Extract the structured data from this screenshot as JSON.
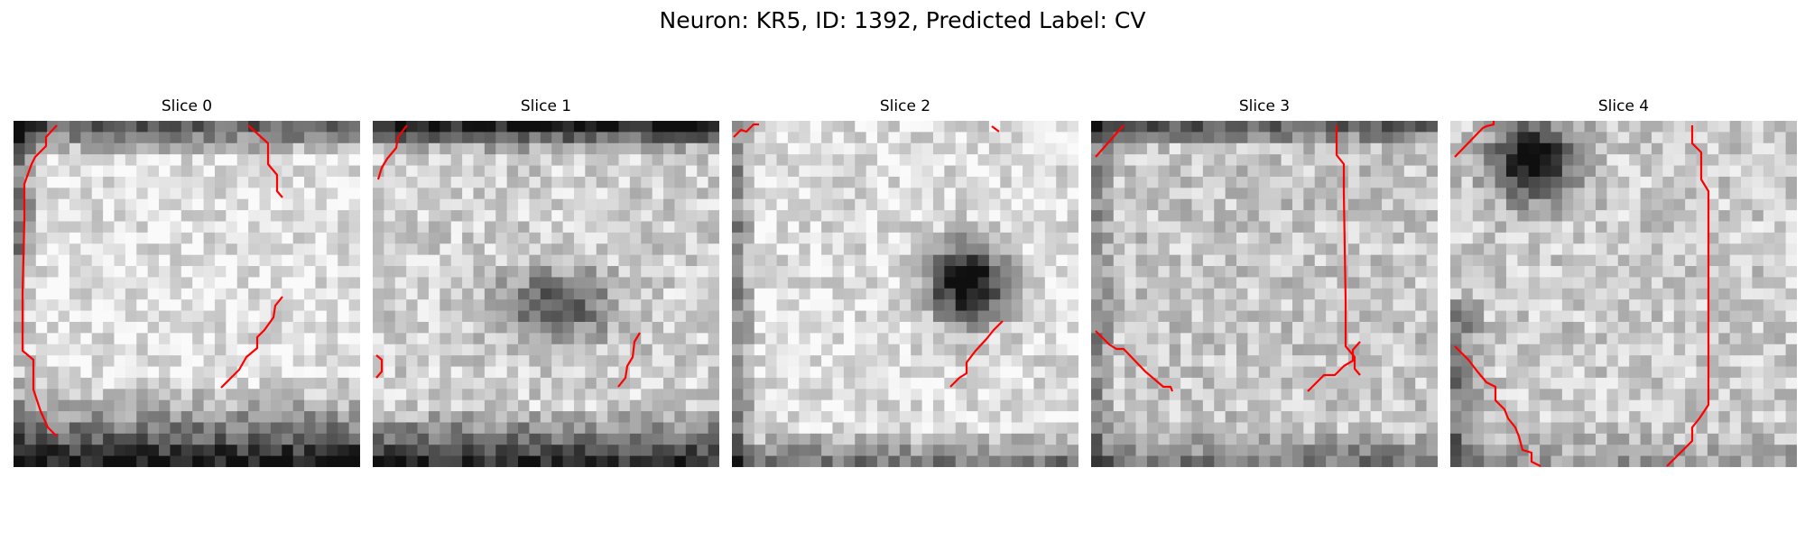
{
  "figure": {
    "title": "Neuron: KR5, ID: 1392, Predicted Label: CV"
  },
  "colors": {
    "contour": "#ff0000",
    "colormap": "grayscale (dark = high intensity)"
  },
  "panels": [
    {
      "label": "Slice 0"
    },
    {
      "label": "Slice 1"
    },
    {
      "label": "Slice 2"
    },
    {
      "label": "Slice 3"
    },
    {
      "label": "Slice 4"
    }
  ]
}
